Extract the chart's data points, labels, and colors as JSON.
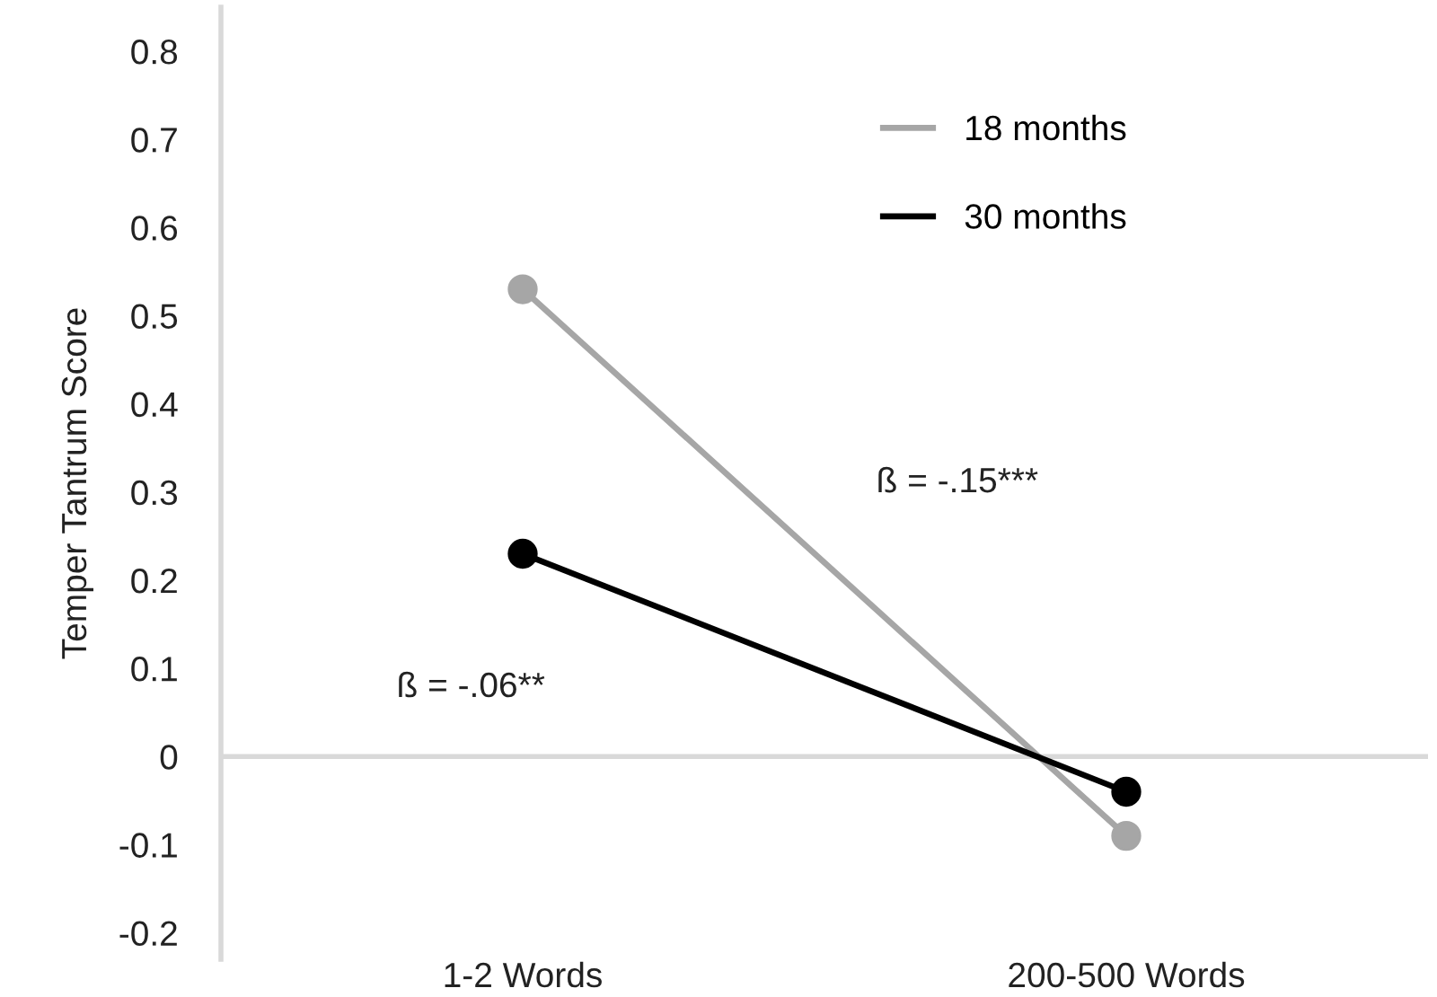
{
  "chart_data": {
    "type": "line",
    "ylabel": "Temper Tantrum Score",
    "categories": [
      "1-2 Words",
      "200-500 Words"
    ],
    "series": [
      {
        "name": "18 months",
        "color": "#a6a6a6",
        "values": [
          0.53,
          -0.09
        ]
      },
      {
        "name": "30 months",
        "color": "#000000",
        "values": [
          0.23,
          -0.04
        ]
      }
    ],
    "ylim": [
      -0.23,
      0.85
    ],
    "yticks": [
      -0.2,
      -0.1,
      0,
      0.1,
      0.2,
      0.3,
      0.4,
      0.5,
      0.6,
      0.7,
      0.8
    ],
    "ref_lines": [
      {
        "axis": "y",
        "value": 0,
        "color": "#d9d9d9"
      }
    ],
    "marker": "circle",
    "line_style": "solid",
    "legend": "top right",
    "grid": false,
    "annotations": [
      "ß = -.15***",
      "ß = -.06**"
    ]
  }
}
